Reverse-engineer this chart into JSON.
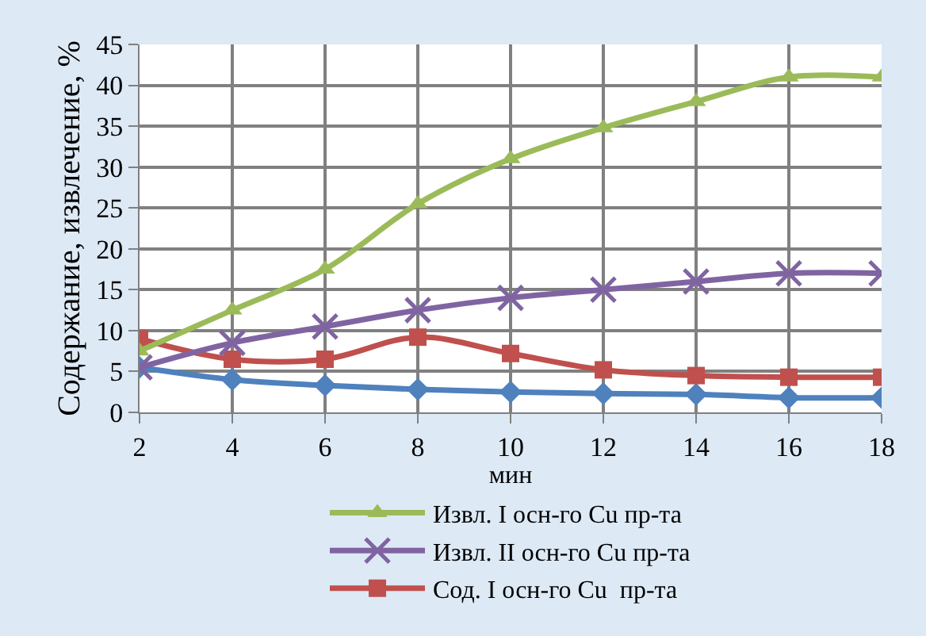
{
  "chart_data": {
    "type": "line",
    "xlabel": "мин",
    "ylabel": "Содержание, извлечение, %",
    "x": [
      2,
      4,
      6,
      8,
      10,
      12,
      14,
      16,
      18
    ],
    "xlim": [
      2,
      18
    ],
    "xticks": [
      2,
      4,
      6,
      8,
      10,
      12,
      14,
      16,
      18
    ],
    "ylim": [
      0,
      45
    ],
    "yticks": [
      0,
      5,
      10,
      15,
      20,
      25,
      30,
      35,
      40,
      45
    ],
    "grid": true,
    "legend": "bottom",
    "series": [
      {
        "name": "Извл. I осн-го Cu пр-та",
        "color": "#9bbb59",
        "marker": "triangle",
        "values": [
          7.5,
          12.5,
          17.5,
          25.5,
          31,
          34.8,
          38,
          41,
          41
        ]
      },
      {
        "name": "Извл. II осн-го Cu пр-та",
        "color": "#8064a2",
        "marker": "cross",
        "values": [
          5.5,
          8.5,
          10.5,
          12.5,
          14,
          15,
          16,
          17,
          17
        ]
      },
      {
        "name": "Сод. I осн-го Cu  пр-та",
        "color": "#c0504d",
        "marker": "square",
        "values": [
          9,
          6.5,
          6.5,
          9.2,
          7.2,
          5.2,
          4.5,
          4.3,
          4.3
        ]
      },
      {
        "color": "#4f81bd",
        "marker": "diamond",
        "values": [
          5.5,
          4,
          3.3,
          2.8,
          2.5,
          2.3,
          2.2,
          1.8,
          1.8
        ]
      }
    ]
  }
}
